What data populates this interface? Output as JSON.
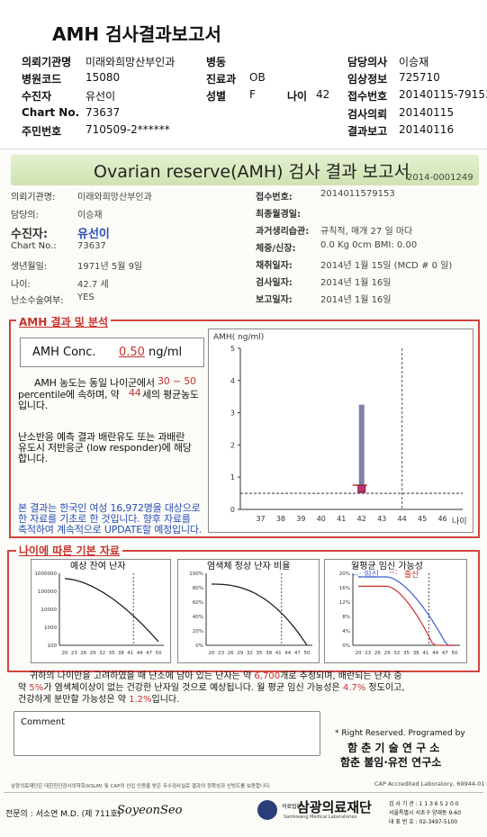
{
  "header": {
    "title": "AMH 검사결과보고서",
    "rows": [
      {
        "a_l": "의뢰기관명",
        "a_v": "미래와희망산부인과",
        "b_l": "병동",
        "b_v": "",
        "c_l": "담당의사",
        "c_v": "이승재"
      },
      {
        "a_l": "병원코드",
        "a_v": "15080",
        "b_l": "진료과",
        "b_v": "OB",
        "c_l": "임상정보",
        "c_v": "725710"
      },
      {
        "a_l": "수진자",
        "a_v": "유선이",
        "b_l": "성별",
        "b_v": "F",
        "d_l": "나이",
        "d_v": "42",
        "c_l": "접수번호",
        "c_v": "20140115-79153"
      },
      {
        "a_l": "Chart No.",
        "a_v": "73637",
        "b_l": "",
        "b_v": "",
        "c_l": "검사의뢰",
        "c_v": "20140115"
      },
      {
        "a_l": "주민번호",
        "a_v": "710509-2******",
        "b_l": "",
        "b_v": "",
        "c_l": "결과보고",
        "c_v": "20140116"
      }
    ]
  },
  "report": {
    "title": "Ovarian reserve(AMH) 검사 결과 보고서",
    "doc_no": "2014-0001249",
    "left": [
      {
        "l": "의뢰기관명:",
        "v": "미래와희망산부인과"
      },
      {
        "l": "담당의:",
        "v": "이승재"
      },
      {
        "l": "수진자:",
        "v": "유선이"
      },
      {
        "l": "Chart No.:",
        "v": "73637"
      },
      {
        "l": "생년월일:",
        "v": "1971년 5월 9일"
      },
      {
        "l": "나이:",
        "v": "42.7 세"
      },
      {
        "l": "난소수술여부:",
        "v": "YES"
      }
    ],
    "right": [
      {
        "l": "접수번호:",
        "v": "2014011579153"
      },
      {
        "l": "최종월경일:",
        "v": ""
      },
      {
        "l": "과거생리습관:",
        "v": "규칙적, 매개   27 일 마다"
      },
      {
        "l": "체중/신장:",
        "v": "0.0 Kg          0cm    BMI:   0.00"
      },
      {
        "l": "채취일자:",
        "v": "2014년 1월 15일   (MCD # 0 일)"
      },
      {
        "l": "검사일자:",
        "v": "2014년 1월 16일"
      },
      {
        "l": "보고일자:",
        "v": "2014년 1월 16일"
      }
    ],
    "amh_section": "AMH 결과 및 분석",
    "amh_label": "AMH Conc.",
    "amh_value": "0.50",
    "amh_unit": "ng/ml",
    "para1_a": "AMH 농도는 동일 나이군에서",
    "para1_range": "30 ~  50",
    "para1_b": "percentile에 속하며, 약",
    "para1_age": "44",
    "para1_c": "세의 평균농도",
    "para1_d": "입니다.",
    "para2": [
      "난소반응 예측 결과 배란유도 또는 과배란",
      "유도시 저반응군 (low responder)에 해당",
      "합니다."
    ],
    "para3": [
      "본 결과는 한국인 여성 16,972명을 대상으로",
      "한 자료를 기초로 한 것입니다. 향후 자료를",
      "축적하여 계속적으로 UPDATE할 예정입니다."
    ],
    "basics_section": "나이에 따른 기본 자료",
    "mini1_title": "예상 잔여 난자",
    "mini2_title": "염색체 정상 난자 비율",
    "mini3_title": "월평균 임신 가능성",
    "mini3_legend_a": "--: 임신",
    "mini3_legend_sep": "--:",
    "mini3_legend_b": "출산",
    "summary_1a": "귀하의 나이만을 고려하였을 때 난소에 남아 있는 난자는 약",
    "summary_1v": "6,700",
    "summary_1b": "개로 추정되며, 배란되는 난자 중",
    "summary_2a": "약",
    "summary_2v": "5%",
    "summary_2b": "가 염색체이상이 없는 건강한 난자일 것으로 예상됩니다. 월 평균 임신 가능성은",
    "summary_2v2": "4.7%",
    "summary_2c": "정도이고,",
    "summary_3a": "건강하게 분만할 가능성은 약",
    "summary_3v": "1.2%",
    "summary_3b": "입니다.",
    "comment_label": "Comment",
    "rights": "* Right Reserved. Programed by",
    "org1": "함 춘 기 술 연 구 소",
    "org2": "함춘 불임·유전 연구소",
    "footnote": "삼광의료재단은 대한진단검사의학회(KSLM) 및 CAP의 신입 인증을 받은 우수검사실로 결과의 정확성과 신빙도를 보증합니다.",
    "cap": "CAP  Accredited  Laboratory,  69944-01",
    "doctor": "전문의 : 서소연 M.D. (제 711호)",
    "signature": "SoyeonSeo",
    "foundation_small": "의료법인",
    "foundation": "삼광의료재단",
    "foundation_en": "Samkwang Medical Laboratories",
    "contact": [
      "검 사 기 관 : 1 1 3 6 5 2 0 0",
      "서울특별시 서초구 양재동 9-60",
      "대 표 번 호 : 02-3497-5100"
    ]
  },
  "chart_data": {
    "type": "scatter",
    "ylabel": "AMH( ng/ml)",
    "xlabel": "나이",
    "x_ticks": [
      37,
      38,
      39,
      40,
      41,
      42,
      43,
      44,
      45,
      46
    ],
    "y_ticks": [
      0,
      1,
      2,
      3,
      4,
      5
    ],
    "xlim": [
      36,
      47
    ],
    "ylim": [
      0,
      5
    ],
    "range_bar": {
      "x": 42,
      "low": 0.5,
      "high": 3.25
    },
    "patient": {
      "x": 42,
      "y": 0.5
    },
    "reference_level": 0.5,
    "vertical_line_x": 44
  },
  "mini_charts": {
    "x_ticks": [
      "20",
      "23",
      "26",
      "29",
      "32",
      "35",
      "38",
      "41",
      "44",
      "47",
      "50"
    ],
    "oocytes": {
      "y_ticks": [
        "1000000",
        "100000",
        "10000",
        "1000",
        "100"
      ]
    },
    "normal_ratio": {
      "y_ticks": [
        "100%",
        "80%",
        "60%",
        "40%",
        "20%",
        "0%"
      ]
    },
    "pregnancy": {
      "y_ticks": [
        "20%",
        "16%",
        "12%",
        "8%",
        "4%",
        "0%"
      ]
    }
  },
  "colors": {
    "accent_red": "#c7322c",
    "text_blue": "#2a4fb8",
    "title_green": "#d7e8bb"
  }
}
